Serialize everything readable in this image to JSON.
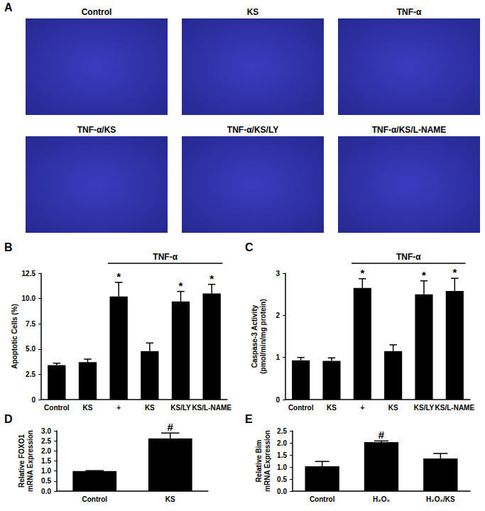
{
  "image_panel": {
    "panel_label": "A",
    "titles": [
      "Control",
      "KS",
      "TNF-α",
      "TNF-α/KS",
      "TNF-α/KS/LY",
      "TNF-α/KS/L-NAME"
    ]
  },
  "chart_data": [
    {
      "panel_label": "B",
      "type": "bar",
      "ylabel": "Apoptotic Cells (%)",
      "categories": [
        "Control",
        "KS",
        "+",
        "KS",
        "KS/LY",
        "KS/L-NAME"
      ],
      "values": [
        3.4,
        3.7,
        10.2,
        4.8,
        9.7,
        10.5
      ],
      "errors": [
        0.2,
        0.3,
        1.4,
        0.8,
        1.0,
        0.9
      ],
      "annotations": [
        null,
        null,
        "*",
        null,
        "*",
        "*"
      ],
      "group_label": "TNF-α",
      "group_members": [
        false,
        false,
        true,
        true,
        true,
        true
      ],
      "color": "#000000",
      "ylim": [
        0,
        12.5
      ],
      "yticks": [
        0,
        2.5,
        {
          "value": 5,
          "label": "5.0"
        },
        7.5,
        {
          "value": 10,
          "label": "10.0"
        },
        12.5
      ]
    },
    {
      "panel_label": "C",
      "type": "bar",
      "ylabel": "Caspase-3 Activity\n(pmol/min/mg protein)",
      "categories": [
        "Control",
        "KS",
        "+",
        "KS",
        "KS/LY",
        "KS/L-NAME"
      ],
      "values": [
        0.93,
        0.92,
        2.65,
        1.15,
        2.5,
        2.58
      ],
      "errors": [
        0.07,
        0.07,
        0.22,
        0.15,
        0.32,
        0.3
      ],
      "annotations": [
        null,
        null,
        "*",
        null,
        "*",
        "*"
      ],
      "group_label": "TNF-α",
      "group_members": [
        false,
        false,
        true,
        true,
        true,
        true
      ],
      "color": "#000000",
      "ylim": [
        0,
        3
      ],
      "yticks": [
        0,
        1,
        2,
        3
      ]
    },
    {
      "panel_label": "D",
      "type": "bar",
      "ylabel": "Relative FOXO1\nmRNA Expression",
      "categories": [
        "Control",
        "KS"
      ],
      "values": [
        1.0,
        2.62
      ],
      "errors": [
        0.02,
        0.27
      ],
      "annotations": [
        null,
        "#"
      ],
      "color": "#000000",
      "ylim": [
        0,
        3
      ],
      "yticks": [
        {
          "value": 0,
          "label": "0.0"
        },
        0.5,
        {
          "value": 1,
          "label": "1.0"
        },
        1.5,
        {
          "value": 2,
          "label": "2.0"
        },
        2.5,
        {
          "value": 3,
          "label": "3.0"
        }
      ]
    },
    {
      "panel_label": "E",
      "type": "bar",
      "ylabel": "Relative Bim\nmRNA Expression",
      "categories": [
        "Control",
        "H₂O₂",
        "H₂O₂/KS"
      ],
      "values": [
        1.03,
        2.03,
        1.35
      ],
      "errors": [
        0.2,
        0.05,
        0.21
      ],
      "annotations": [
        null,
        "#",
        null
      ],
      "color": "#000000",
      "ylim": [
        0,
        2.5
      ],
      "yticks": [
        {
          "value": 0,
          "label": "0.0"
        },
        0.5,
        {
          "value": 1,
          "label": "1.0"
        },
        1.5,
        {
          "value": 2,
          "label": "2.0"
        },
        2.5
      ]
    }
  ]
}
